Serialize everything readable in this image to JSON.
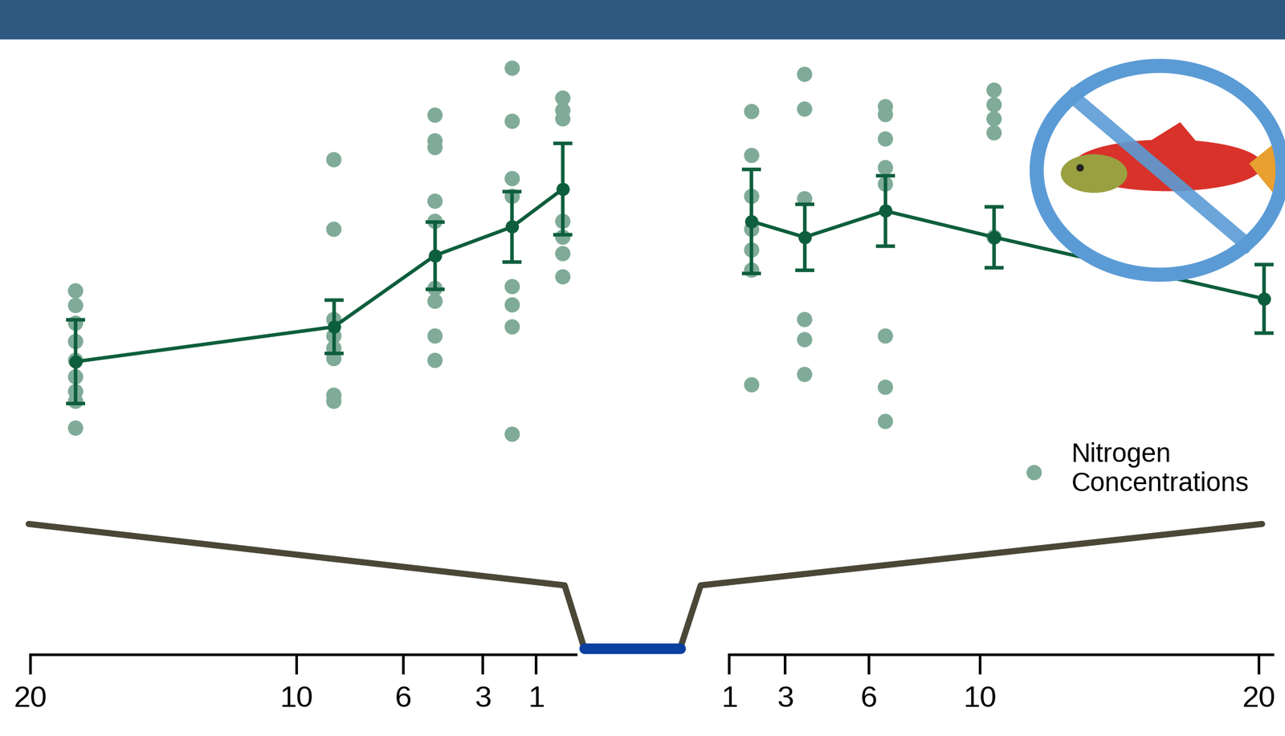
{
  "chart_data": [
    {
      "type": "scatter",
      "x": [
        18.3,
        8.6,
        4.8,
        1.9,
        0.0
      ],
      "xlim": [
        20,
        -0.5
      ],
      "xticks": [
        20,
        10,
        6,
        3,
        1
      ],
      "ylim": [
        0,
        100
      ],
      "tick_labels": "x",
      "series": [
        {
          "type": "scatter",
          "color": "#80ab99",
          "marker": "circle",
          "values": [
            [
              59.7,
              57.3,
              54.4,
              51.4,
              48.3,
              45.6,
              43.2,
              41.6,
              37.2
            ],
            [
              81.2,
              69.8,
              55.0,
              52.3,
              50.3,
              48.6,
              42.6,
              41.6
            ],
            [
              88.5,
              84.3,
              83.2,
              74.4,
              71.1,
              60.1,
              58.0,
              52.3,
              48.3
            ],
            [
              96.2,
              87.5,
              78.1,
              75.2,
              60.4,
              57.4,
              53.8,
              36.2
            ],
            [
              91.3,
              89.3,
              87.9,
              71.1,
              68.5,
              65.8,
              62.0
            ]
          ]
        },
        {
          "type": "line",
          "color": "#0d5e3c",
          "marker": "circle",
          "line_style": "solid",
          "values": [
            48.1,
            53.8,
            65.5,
            70.2,
            76.4
          ],
          "errors": [
            6.9,
            4.4,
            5.5,
            5.8,
            7.5
          ]
        }
      ]
    },
    {
      "type": "scatter",
      "x": [
        1.8,
        3.7,
        6.6,
        10.5,
        20.2
      ],
      "xlim": [
        1,
        20.5
      ],
      "xticks": [
        1,
        3,
        6,
        10,
        20
      ],
      "ylim": [
        0,
        100
      ],
      "tick_labels": "x",
      "legend": "lower right",
      "series": [
        {
          "name": "Nitrogen Concentrations",
          "type": "scatter",
          "color": "#80ab99",
          "marker": "circle",
          "values": [
            [
              89.1,
              81.9,
              75.2,
              69.8,
              66.4,
              63.1,
              44.3
            ],
            [
              95.2,
              89.5,
              74.8,
              55.0,
              51.7,
              46.0
            ],
            [
              89.9,
              88.6,
              84.6,
              79.9,
              77.2,
              52.3,
              43.9,
              38.3
            ],
            [
              92.6,
              90.2,
              87.9,
              85.6,
              68.5
            ],
            []
          ]
        },
        {
          "type": "line",
          "color": "#0d5e3c",
          "marker": "circle",
          "line_style": "solid",
          "values": [
            71.1,
            68.5,
            72.8,
            68.5,
            58.4
          ],
          "errors": [
            8.5,
            5.4,
            5.8,
            5.0,
            5.6
          ]
        }
      ]
    }
  ]
}
